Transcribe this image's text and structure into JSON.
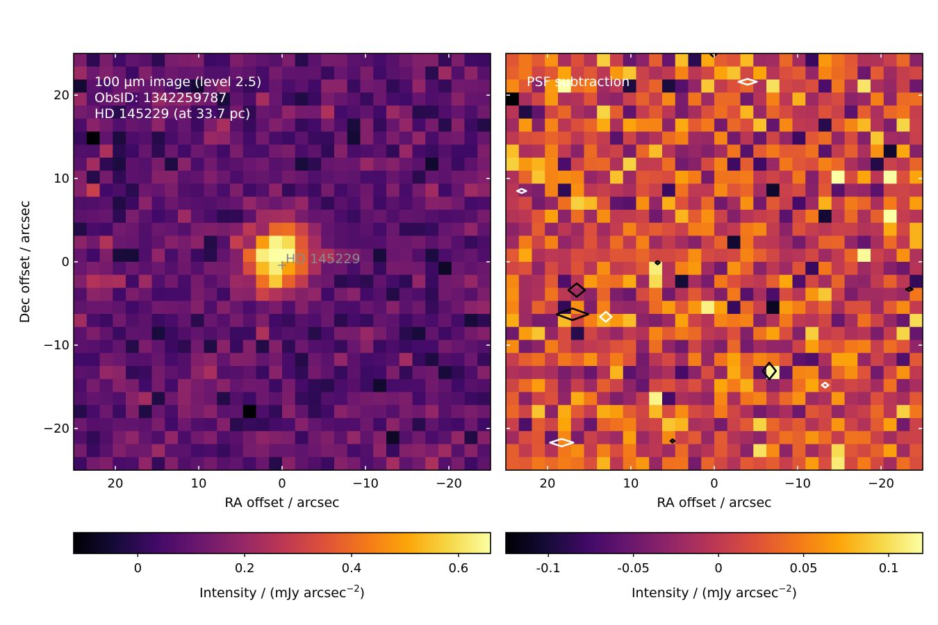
{
  "chart_data": [
    {
      "type": "heatmap",
      "panel": "left",
      "colormap": "inferno",
      "annotation_lines": [
        "100 µm image (level 2.5)",
        "ObsID: 1342259787",
        "HD 145229 (at 33.7 pc)"
      ],
      "source_label": "HD 145229",
      "source_position": [
        0,
        0
      ],
      "xlabel": "RA offset / arcsec",
      "ylabel": "Dec offset / arcsec",
      "xlim": [
        25,
        -25
      ],
      "ylim": [
        -25,
        25
      ],
      "x_ticks": [
        20,
        10,
        0,
        -10,
        -20
      ],
      "x_tick_labels": [
        "20",
        "10",
        "0",
        "−10",
        "−20"
      ],
      "y_ticks": [
        20,
        10,
        0,
        -10,
        -20
      ],
      "y_tick_labels": [
        "20",
        "10",
        "0",
        "−10",
        "−20"
      ],
      "grid": false,
      "pixel_size_arcsec": 1.6,
      "source_peak": 0.62,
      "source_fwhm_arcsec": 6.5,
      "background_level": 0.09,
      "colorbar": {
        "label": "Intensity / (mJy arcsec",
        "label_exponent": "−2",
        "label_close": ")",
        "range": [
          -0.12,
          0.66
        ],
        "ticks": [
          0,
          0.2,
          0.4,
          0.6
        ],
        "tick_labels": [
          "0",
          "0.2",
          "0.4",
          "0.6"
        ]
      }
    },
    {
      "type": "heatmap",
      "panel": "right",
      "colormap": "inferno",
      "annotation_lines": [
        "PSF subtraction"
      ],
      "xlabel": "RA offset / arcsec",
      "xlim": [
        25,
        -25
      ],
      "ylim": [
        -25,
        25
      ],
      "x_ticks": [
        20,
        10,
        0,
        -10,
        -20
      ],
      "x_tick_labels": [
        "20",
        "10",
        "0",
        "−10",
        "−20"
      ],
      "grid": false,
      "pixel_size_arcsec": 1.6,
      "contours": [
        {
          "color": "#000000",
          "center": [
            16.5,
            -3.4
          ],
          "radius": [
            1.0,
            0.8
          ]
        },
        {
          "color": "#000000",
          "center": [
            17.0,
            -6.3
          ],
          "radius": [
            1.9,
            0.7
          ]
        },
        {
          "color": "#ffffff",
          "center": [
            13.0,
            -6.6
          ],
          "radius": [
            0.7,
            0.6
          ]
        },
        {
          "color": "#000000",
          "center": [
            -6.6,
            -13.1
          ],
          "radius": [
            0.8,
            1.0
          ]
        },
        {
          "color": "#ffffff",
          "center": [
            -4.0,
            21.6
          ],
          "radius": [
            1.1,
            0.35
          ]
        },
        {
          "color": "#ffffff",
          "center": [
            18.3,
            -21.7
          ],
          "radius": [
            1.4,
            0.45
          ]
        },
        {
          "color": "#ffffff",
          "center": [
            23.1,
            8.5
          ],
          "radius": [
            0.55,
            0.25
          ]
        },
        {
          "color": "#ffffff",
          "center": [
            -13.3,
            -14.8
          ],
          "radius": [
            0.4,
            0.3
          ]
        },
        {
          "color": "#000000",
          "center": [
            -23.4,
            -3.3
          ],
          "radius": [
            0.4,
            0.2
          ]
        },
        {
          "color": "#000000",
          "center": [
            6.8,
            -0.1
          ],
          "radius": [
            0.25,
            0.2
          ]
        },
        {
          "color": "#000000",
          "center": [
            5.0,
            -21.5
          ],
          "radius": [
            0.25,
            0.2
          ]
        },
        {
          "color": "#000000",
          "center": [
            0.1,
            24.9
          ],
          "radius": [
            0.35,
            0.3
          ]
        }
      ],
      "colorbar": {
        "label": "Intensity / (mJy arcsec",
        "label_exponent": "−2",
        "label_close": ")",
        "range": [
          -0.125,
          0.12
        ],
        "ticks": [
          -0.1,
          -0.05,
          0,
          0.05,
          0.1
        ],
        "tick_labels": [
          "-0.1",
          "-0.05",
          "0",
          "0.05",
          "0.1"
        ]
      }
    }
  ]
}
